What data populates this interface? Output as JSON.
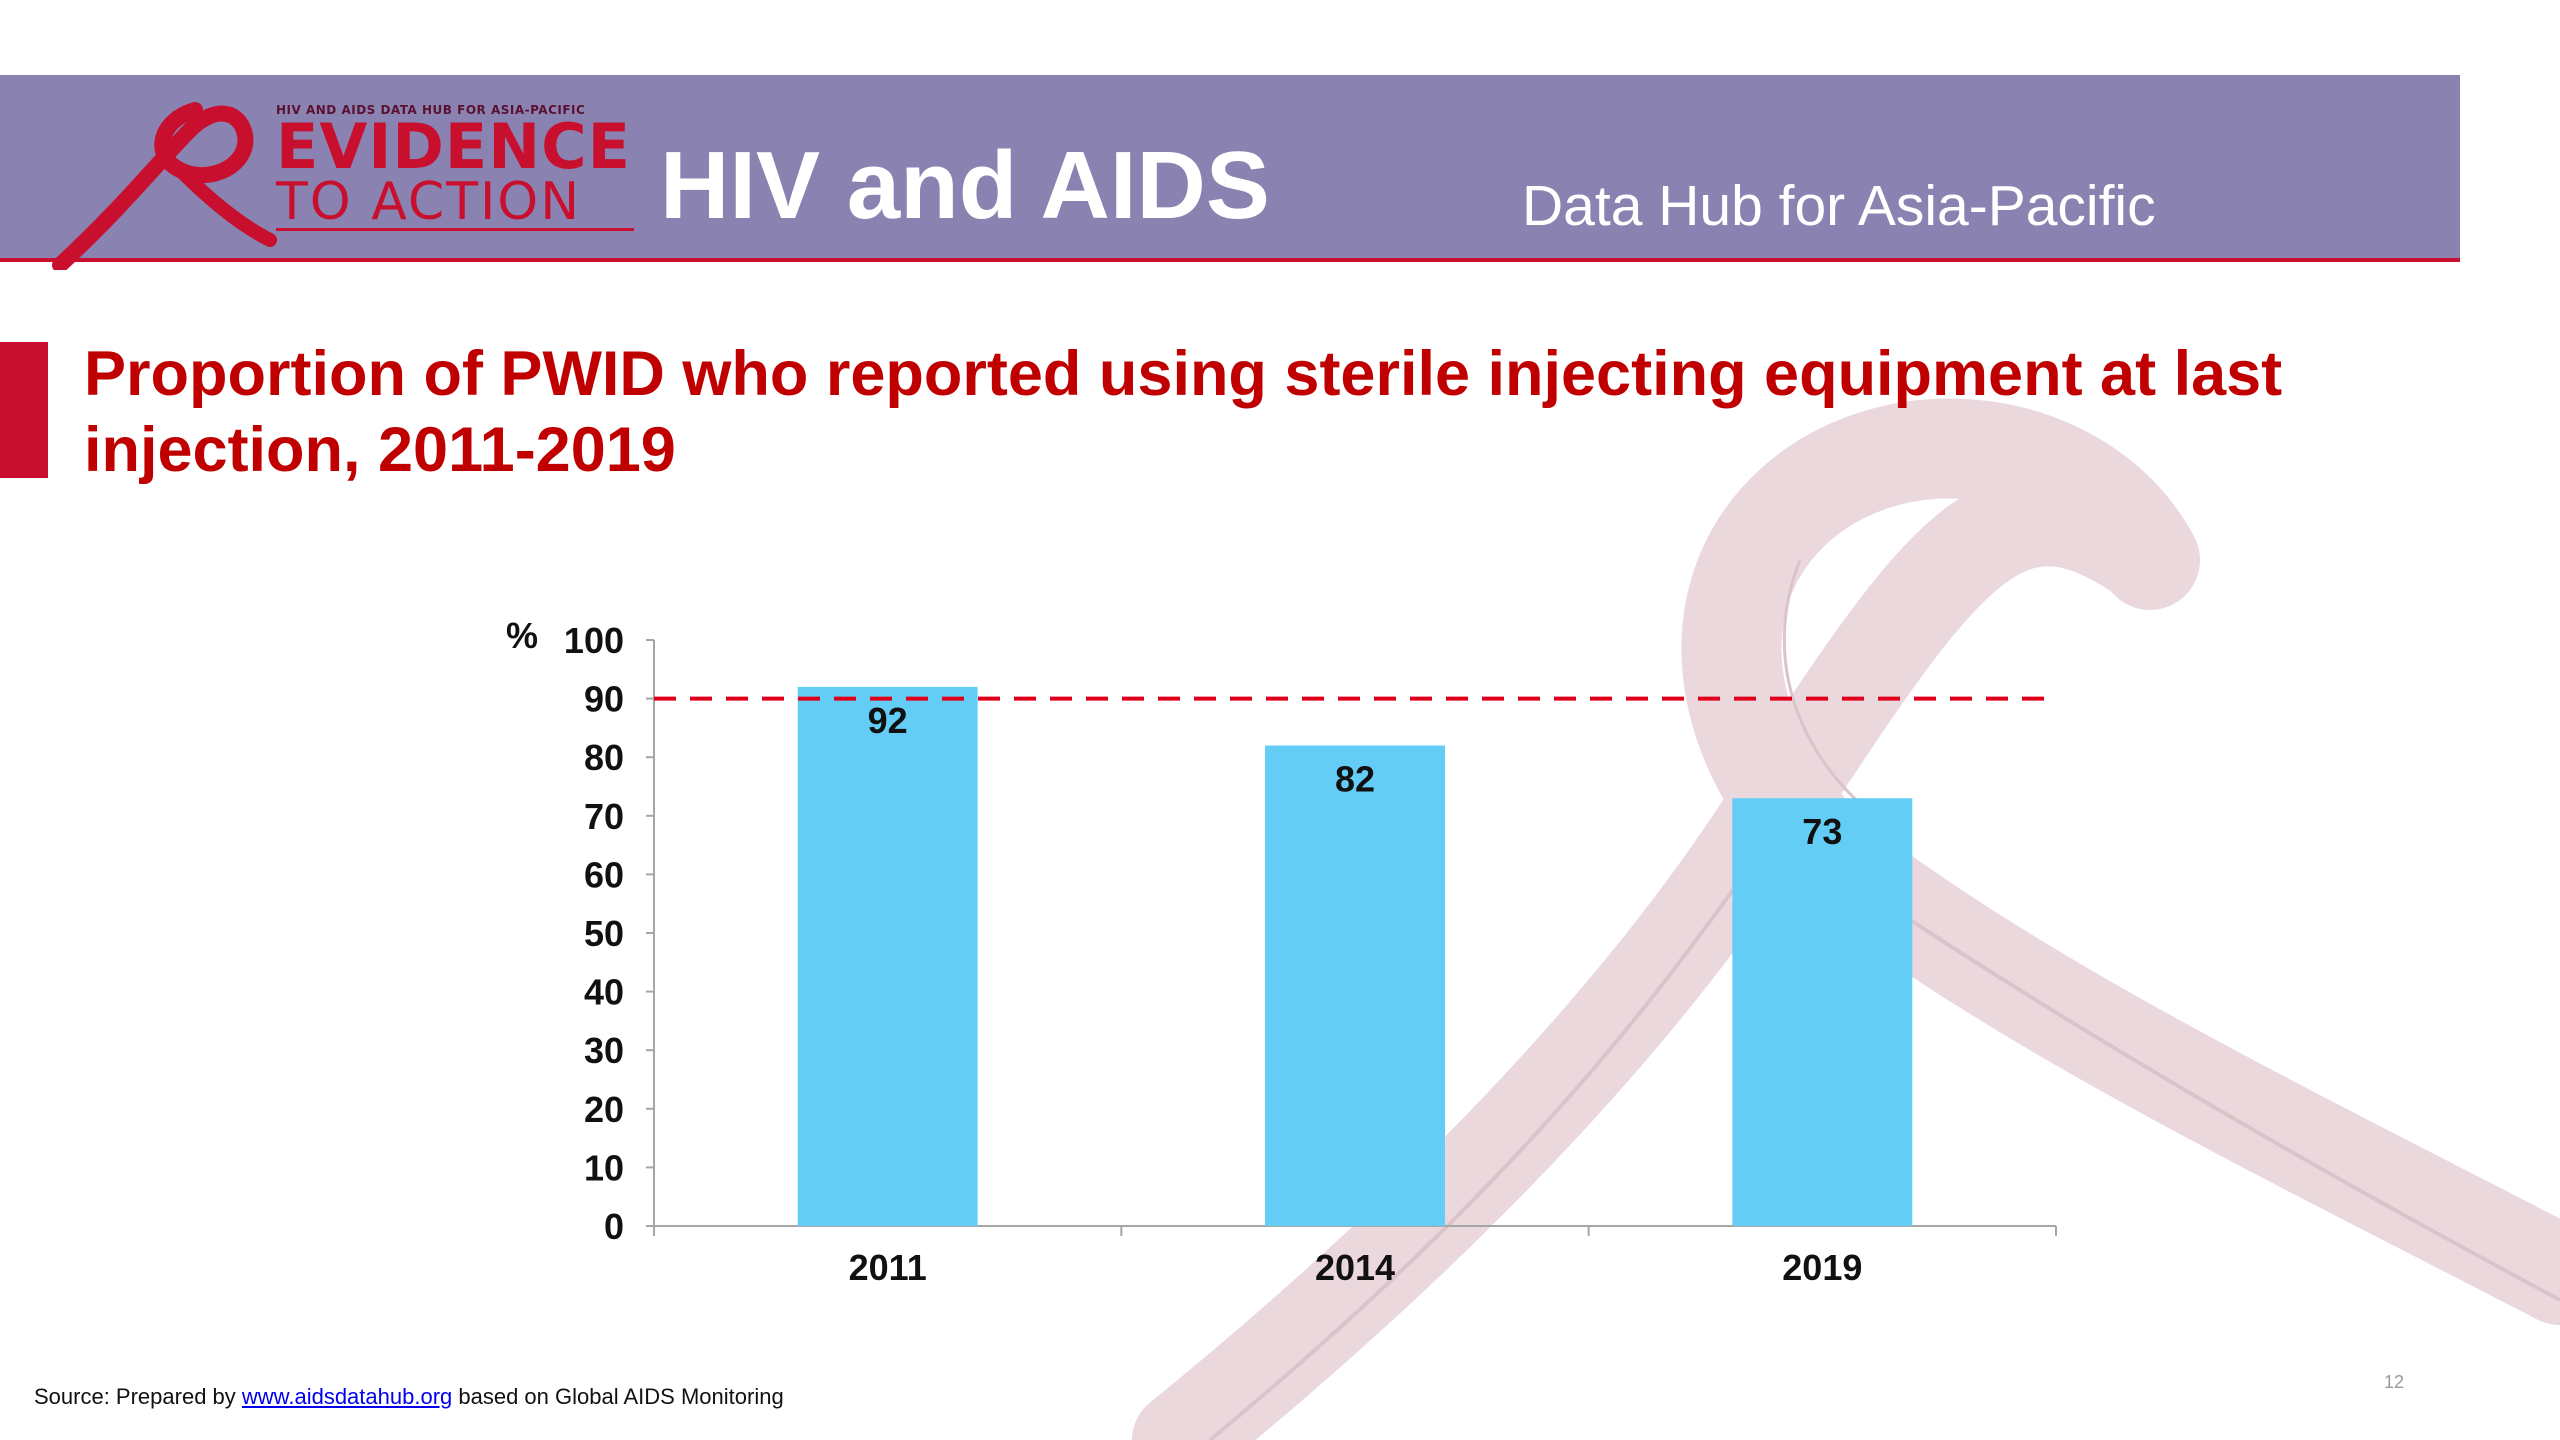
{
  "header": {
    "logo_top": "HIV AND AIDS DATA HUB FOR ASIA-PACIFIC",
    "logo_main": "EVIDENCE",
    "logo_sub": "TO ACTION",
    "title": "HIV and AIDS",
    "subtitle": "Data Hub for Asia-Pacific"
  },
  "slide": {
    "title": "Proportion of PWID who reported using sterile injecting equipment at last injection, 2011-2019"
  },
  "footer": {
    "source_prefix": "Source: Prepared by ",
    "source_link": "www.aidsdatahub.org",
    "source_suffix": "  based on Global AIDS Monitoring",
    "page_number": "12"
  },
  "colors": {
    "header_bg": "#8a83b2",
    "accent_red": "#c8102e",
    "title_red": "#c00000",
    "bar_fill": "#63cdf5",
    "reference_line": "#e0001b"
  },
  "chart_data": {
    "type": "bar",
    "categories": [
      "2011",
      "2014",
      "2019"
    ],
    "values": [
      92,
      82,
      73
    ],
    "data_labels": [
      "92",
      "82",
      "73"
    ],
    "ylabel": "%",
    "ylim": [
      0,
      100
    ],
    "yticks": [
      0,
      10,
      20,
      30,
      40,
      50,
      60,
      70,
      80,
      90,
      100
    ],
    "reference_line": {
      "value": 90,
      "style": "dashed"
    },
    "grid": false,
    "legend": "none"
  }
}
